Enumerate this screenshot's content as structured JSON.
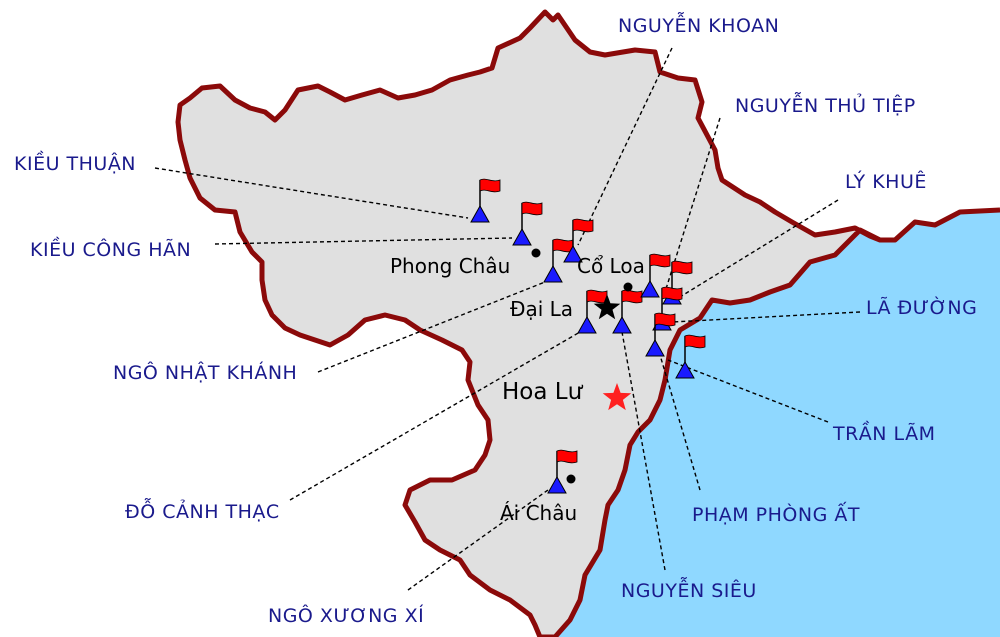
{
  "colors": {
    "sea": "#8fd8ff",
    "land": "#e0e0e0",
    "border": "#8b0a0a",
    "lord_marker": "#1a1aff",
    "flag": "#ff0000",
    "capital_star": "#ff2020",
    "label_text": "#1a1a8c"
  },
  "icons": {
    "lord_marker": "blue-triangle-with-red-flag-icon",
    "town": "black-dot-icon",
    "old_capital": "black-star-icon",
    "new_capital": "red-star-icon"
  },
  "places": {
    "phong_chau": "Phong Châu",
    "co_loa": "Cổ Loa",
    "dai_la": "Đại La",
    "hoa_lu": "Hoa Lư",
    "ai_chau": "Ái Châu"
  },
  "lords": {
    "nguyen_khoan": "NGUYỄN KHOAN",
    "nguyen_thu_tiep": "NGUYỄN THỦ TIỆP",
    "ly_khue": "LÝ KHUÊ",
    "kieu_thuan": "KIỀU THUẬN",
    "kieu_cong_han": "KIỀU CÔNG HÃN",
    "la_duong": "LÃ ĐƯỜNG",
    "ngo_nhat_khanh": "NGÔ NHẬT KHÁNH",
    "tran_lam": "TRẦN LÃM",
    "do_canh_thac": "ĐỖ CẢNH THẠC",
    "pham_phong_at": "PHẠM PHÒNG ẤT",
    "nguyen_sieu": "NGUYỄN SIÊU",
    "ngo_xuong_xi": "NGÔ XƯƠNG XÍ"
  }
}
